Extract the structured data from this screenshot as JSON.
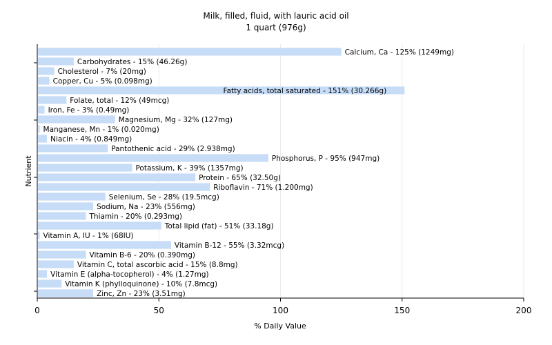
{
  "chart_data": {
    "type": "bar",
    "orientation": "horizontal",
    "title": "Milk, filled, fluid, with lauric acid oil",
    "subtitle": "1 quart (976g)",
    "xlabel": "% Daily Value",
    "ylabel": "Nutrient",
    "xlim": [
      0,
      200
    ],
    "xticks": [
      0,
      50,
      100,
      150,
      200
    ],
    "grid": "vertical",
    "bar_color": "#c6dcf7",
    "categories": [
      "Calcium, Ca",
      "Carbohydrates",
      "Cholesterol",
      "Copper, Cu",
      "Fatty acids, total saturated",
      "Folate, total",
      "Iron, Fe",
      "Magnesium, Mg",
      "Manganese, Mn",
      "Niacin",
      "Pantothenic acid",
      "Phosphorus, P",
      "Potassium, K",
      "Protein",
      "Riboflavin",
      "Selenium, Se",
      "Sodium, Na",
      "Thiamin",
      "Total lipid (fat)",
      "Vitamin A, IU",
      "Vitamin B-12",
      "Vitamin B-6",
      "Vitamin C, total ascorbic acid",
      "Vitamin E (alpha-tocopherol)",
      "Vitamin K (phylloquinone)",
      "Zinc, Zn"
    ],
    "values": [
      125,
      15,
      7,
      5,
      151,
      12,
      3,
      32,
      1,
      4,
      29,
      95,
      39,
      65,
      71,
      28,
      23,
      20,
      51,
      1,
      55,
      20,
      15,
      4,
      10,
      23
    ],
    "labels": [
      "Calcium, Ca - 125% (1249mg)",
      "Carbohydrates - 15% (46.26g)",
      "Cholesterol - 7% (20mg)",
      "Copper, Cu - 5% (0.098mg)",
      "Fatty acids, total saturated - 151% (30.266g)",
      "Folate, total - 12% (49mcg)",
      "Iron, Fe - 3% (0.49mg)",
      "Magnesium, Mg - 32% (127mg)",
      "Manganese, Mn - 1% (0.020mg)",
      "Niacin - 4% (0.849mg)",
      "Pantothenic acid - 29% (2.938mg)",
      "Phosphorus, P - 95% (947mg)",
      "Potassium, K - 39% (1357mg)",
      "Protein - 65% (32.50g)",
      "Riboflavin - 71% (1.200mg)",
      "Selenium, Se - 28% (19.5mcg)",
      "Sodium, Na - 23% (556mg)",
      "Thiamin - 20% (0.293mg)",
      "Total lipid (fat) - 51% (33.18g)",
      "Vitamin A, IU - 1% (68IU)",
      "Vitamin B-12 - 55% (3.32mcg)",
      "Vitamin B-6 - 20% (0.390mg)",
      "Vitamin C, total ascorbic acid - 15% (8.8mg)",
      "Vitamin E (alpha-tocopherol) - 4% (1.27mg)",
      "Vitamin K (phylloquinone) - 10% (7.8mcg)",
      "Zinc, Zn - 23% (3.51mg)"
    ]
  }
}
